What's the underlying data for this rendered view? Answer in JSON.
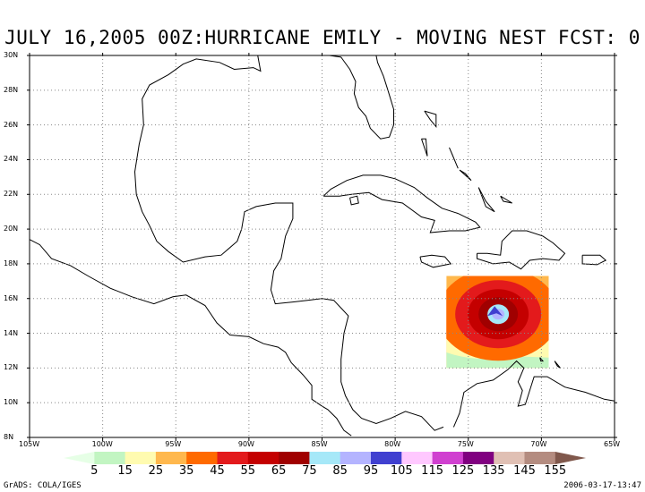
{
  "title": "JULY 16,2005 00Z:HURRICANE EMILY - MOVING NEST FCST: 0",
  "footer_left": "GrADS: COLA/IGES",
  "footer_right": "2006-03-17-13:47",
  "map": {
    "lon_range": [
      -105,
      -65
    ],
    "lat_range": [
      8,
      30
    ],
    "lon_ticks": [
      -105,
      -100,
      -95,
      -90,
      -85,
      -80,
      -75,
      -70,
      -65
    ],
    "lon_tick_labels": [
      "105W",
      "100W",
      "95W",
      "90W",
      "85W",
      "80W",
      "75W",
      "70W",
      "65W"
    ],
    "lat_ticks": [
      8,
      10,
      12,
      14,
      16,
      18,
      20,
      22,
      24,
      26,
      28,
      30
    ],
    "lat_tick_labels": [
      "8N",
      "10N",
      "12N",
      "14N",
      "16N",
      "18N",
      "20N",
      "22N",
      "24N",
      "26N",
      "28N",
      "30N"
    ],
    "grid": "dotted",
    "nest_box": {
      "lon": [
        -76.5,
        -69.5
      ],
      "lat": [
        12,
        17.3
      ]
    },
    "storm_center": {
      "lon": -73.2,
      "lat": 15.2
    }
  },
  "colorbar": {
    "labels": [
      "5",
      "15",
      "25",
      "35",
      "45",
      "55",
      "65",
      "75",
      "85",
      "95",
      "105",
      "115",
      "125",
      "135",
      "145",
      "155"
    ],
    "colors": [
      "#e6ffe6",
      "#c2f5c2",
      "#fffbb0",
      "#ffb84d",
      "#ff6a00",
      "#e31a1c",
      "#c40000",
      "#a00000",
      "#a6e8f8",
      "#b4b4ff",
      "#4040d0",
      "#ffc8ff",
      "#d040d0",
      "#800080",
      "#e0c0b4",
      "#b48c80",
      "#80584c"
    ]
  }
}
